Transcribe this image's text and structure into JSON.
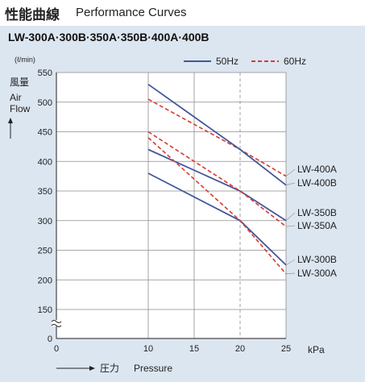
{
  "header": {
    "title": "性能曲線",
    "subtitle": "Performance Curves",
    "models": "LW-300A·300B·350A·350B·400A·400B"
  },
  "colors": {
    "background_panel": "#dce6f1",
    "hz50": "#44579a",
    "hz60": "#d93a32",
    "grid": "#8c8c8c"
  },
  "chart_data": {
    "type": "line",
    "y_unit": "(ℓ/min)",
    "ylabel_jp": "風量",
    "ylabel_en_1": "Air",
    "ylabel_en_2": "Flow",
    "xlabel_jp": "圧力",
    "xlabel_en": "Pressure",
    "x_unit": "kPa",
    "xlim": [
      0,
      25
    ],
    "ylim": [
      150,
      550
    ],
    "y_break": true,
    "x_ticks": [
      0,
      10,
      15,
      20,
      25
    ],
    "y_ticks": [
      0,
      150,
      200,
      250,
      300,
      350,
      400,
      450,
      500,
      550
    ],
    "x_ticks_labels": [
      "0",
      "10",
      "15",
      "20",
      "25"
    ],
    "y_ticks_labels": [
      "0",
      "150",
      "200",
      "250",
      "300",
      "350",
      "400",
      "450",
      "500",
      "550"
    ],
    "grid": true,
    "legend": {
      "position": "top-right",
      "items": [
        {
          "label": "50Hz",
          "style": "solid",
          "color": "#44579a"
        },
        {
          "label": "60Hz",
          "style": "dashed",
          "color": "#d93a32"
        }
      ]
    },
    "series": [
      {
        "name": "LW-400A",
        "hz": "60Hz",
        "x": [
          10,
          20,
          25
        ],
        "y": [
          505,
          420,
          375
        ]
      },
      {
        "name": "LW-400B",
        "hz": "50Hz",
        "x": [
          10,
          20,
          25
        ],
        "y": [
          530,
          420,
          360
        ]
      },
      {
        "name": "LW-350B",
        "hz": "50Hz",
        "x": [
          10,
          20,
          25
        ],
        "y": [
          420,
          350,
          300
        ]
      },
      {
        "name": "LW-350A",
        "hz": "60Hz",
        "x": [
          10,
          20,
          25
        ],
        "y": [
          450,
          350,
          290
        ]
      },
      {
        "name": "LW-300B",
        "hz": "50Hz",
        "x": [
          10,
          20,
          25
        ],
        "y": [
          380,
          300,
          225
        ]
      },
      {
        "name": "LW-300A",
        "hz": "60Hz",
        "x": [
          10,
          20,
          25
        ],
        "y": [
          440,
          300,
          210
        ]
      }
    ]
  }
}
